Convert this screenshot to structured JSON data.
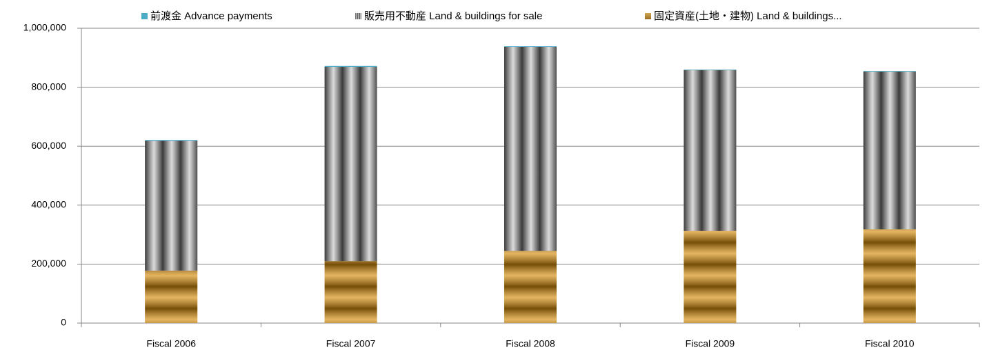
{
  "chart_data": {
    "type": "stacked-bar",
    "categories": [
      "Fiscal 2006",
      "Fiscal 2007",
      "Fiscal 2008",
      "Fiscal 2009",
      "Fiscal 2010"
    ],
    "series": [
      {
        "name": "前渡金 Advance payments",
        "color": "#4bacc6",
        "pattern": "solid",
        "values": [
          3000,
          3000,
          2000,
          2000,
          2000
        ]
      },
      {
        "name": "販売用不動産 Land & buildings for sale",
        "color": "#a6a6a6",
        "pattern": "vertical-stripes",
        "values": [
          440000,
          659000,
          692000,
          545000,
          535000
        ]
      },
      {
        "name": "固定資産(土地・建物) Land & buildings...",
        "color": "#d48c0a",
        "pattern": "horizontal-bands",
        "values": [
          178000,
          210000,
          245000,
          313000,
          318000
        ]
      }
    ],
    "ylim": [
      0,
      1000000
    ],
    "yticks": [
      0,
      {
        "value": 200000,
        "label": "200,000"
      },
      {
        "value": 400000,
        "label": "400,000"
      },
      {
        "value": 600000,
        "label": "600,000"
      },
      {
        "value": 800000,
        "label": "800,000"
      },
      {
        "value": 1000000,
        "label": "1,000,000"
      }
    ],
    "grid": true,
    "legend": "top"
  }
}
